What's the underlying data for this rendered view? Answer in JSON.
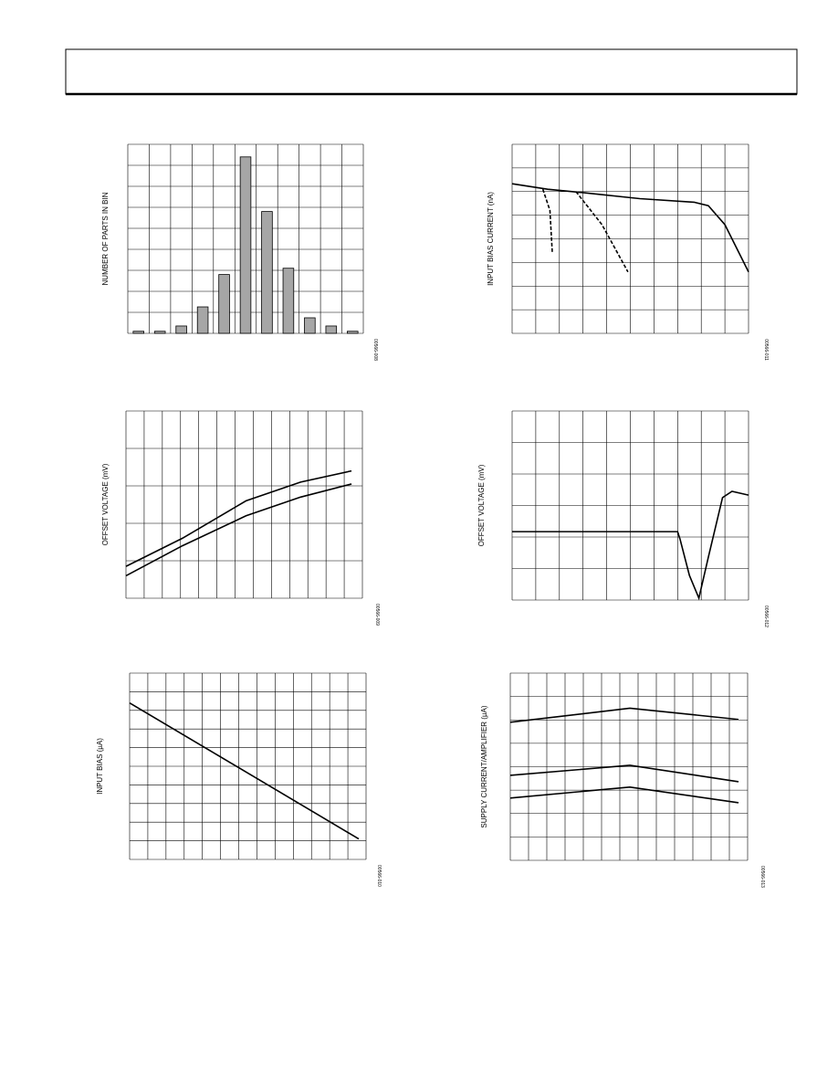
{
  "chart_data": [
    {
      "type": "bar",
      "y_label": "NUMBER OF PARTS IN BIN",
      "figure_code": "00566-008",
      "categories": [
        null,
        null,
        null,
        null,
        null,
        null,
        null,
        null,
        null,
        null,
        null
      ],
      "values": [
        0.1,
        0.1,
        0.35,
        1.26,
        2.8,
        8.4,
        5.8,
        3.1,
        0.74,
        0.35,
        0.1
      ],
      "color": "#a6a6a6",
      "xlim": [
        0,
        11
      ],
      "ylim": [
        0,
        9
      ],
      "xticks": [
        0,
        1,
        2,
        3,
        4,
        5,
        6,
        7,
        8,
        9,
        10,
        11
      ],
      "yticks": [
        0,
        1,
        2,
        3,
        4,
        5,
        6,
        7,
        8,
        9
      ],
      "grid": true
    },
    {
      "type": "line",
      "y_label": "INPUT BIAS CURRENT (nA)",
      "figure_code": "00566-011",
      "xlim": [
        0,
        10
      ],
      "ylim": [
        0,
        8
      ],
      "xticks": [
        0,
        1,
        2,
        3,
        4,
        5,
        6,
        7,
        8,
        9,
        10
      ],
      "yticks": [
        0,
        1,
        2,
        3,
        4,
        5,
        6,
        7,
        8
      ],
      "grid": true,
      "series": [
        {
          "color": "#000000",
          "style": "solid",
          "x": [
            0,
            1.5,
            3.05,
            5.4,
            7.7,
            8.3,
            9.0,
            10
          ],
          "values": [
            6.33,
            6.1,
            5.95,
            5.7,
            5.55,
            5.4,
            4.6,
            2.6
          ]
        },
        {
          "color": "#000000",
          "style": "dashed",
          "x": [
            1.3,
            1.6,
            1.7
          ],
          "values": [
            6.1,
            5.2,
            3.4
          ]
        },
        {
          "color": "#000000",
          "style": "dashed",
          "x": [
            2.7,
            3.8,
            4.9
          ],
          "values": [
            6.0,
            4.6,
            2.6
          ]
        }
      ]
    },
    {
      "type": "line",
      "y_label": "OFFSET VOLTAGE (mV)",
      "figure_code": "00566-009",
      "xlim": [
        0,
        13
      ],
      "ylim": [
        0,
        5
      ],
      "xticks": [
        0,
        1,
        2,
        3,
        4,
        5,
        6,
        7,
        8,
        9,
        10,
        11,
        12,
        13
      ],
      "yticks": [
        0,
        1,
        2,
        3,
        4,
        5
      ],
      "grid": true,
      "series": [
        {
          "color": "#000000",
          "style": "solid",
          "x": [
            0,
            3.1,
            6.6,
            9.6,
            12.4
          ],
          "values": [
            0.85,
            1.6,
            2.6,
            3.1,
            3.4
          ]
        },
        {
          "color": "#000000",
          "style": "solid",
          "x": [
            0,
            3.1,
            6.6,
            9.6,
            12.4
          ],
          "values": [
            0.6,
            1.4,
            2.2,
            2.7,
            3.05
          ]
        }
      ]
    },
    {
      "type": "line",
      "y_label": "OFFSET VOLTAGE (mV)",
      "figure_code": "00566-012",
      "xlim": [
        0,
        10
      ],
      "ylim": [
        0,
        6
      ],
      "xticks": [
        0,
        1,
        2,
        3,
        4,
        5,
        6,
        7,
        8,
        9,
        10
      ],
      "yticks": [
        0,
        1,
        2,
        3,
        4,
        5,
        6
      ],
      "grid": true,
      "series": [
        {
          "color": "#000000",
          "style": "solid",
          "x": [
            0,
            7.0,
            7.1,
            7.5,
            7.9,
            8.3,
            8.9,
            9.3,
            10
          ],
          "values": [
            2.17,
            2.17,
            1.94,
            0.78,
            0.06,
            1.36,
            3.25,
            3.45,
            3.33
          ]
        }
      ]
    },
    {
      "type": "line",
      "y_label": "INPUT BIAS (µA)",
      "figure_code": "00566-010",
      "xlim": [
        0,
        13
      ],
      "ylim": [
        0,
        10
      ],
      "xticks": [
        0,
        1,
        2,
        3,
        4,
        5,
        6,
        7,
        8,
        9,
        10,
        11,
        12,
        13
      ],
      "yticks": [
        0,
        1,
        2,
        3,
        4,
        5,
        6,
        7,
        8,
        9,
        10
      ],
      "grid": true,
      "series": [
        {
          "color": "#000000",
          "style": "solid",
          "x": [
            0,
            12.6
          ],
          "values": [
            8.4,
            1.1
          ]
        }
      ]
    },
    {
      "type": "line",
      "y_label": "SUPPLY CURRENT/AMPLIFIER (µA)",
      "figure_code": "00566-013",
      "xlim": [
        0,
        13
      ],
      "ylim": [
        0,
        8
      ],
      "xticks": [
        0,
        1,
        2,
        3,
        4,
        5,
        6,
        7,
        8,
        9,
        10,
        11,
        12,
        13
      ],
      "yticks": [
        0,
        1,
        2,
        3,
        4,
        5,
        6,
        7,
        8
      ],
      "grid": true,
      "series": [
        {
          "color": "#000000",
          "style": "solid",
          "x": [
            0,
            6.55,
            12.5
          ],
          "values": [
            5.9,
            6.5,
            6.02
          ]
        },
        {
          "color": "#000000",
          "style": "solid",
          "x": [
            0,
            6.55,
            12.5
          ],
          "values": [
            3.63,
            4.06,
            3.36
          ]
        },
        {
          "color": "#000000",
          "style": "solid",
          "x": [
            0,
            6.55,
            12.5
          ],
          "values": [
            2.66,
            3.13,
            2.46
          ]
        }
      ]
    }
  ]
}
